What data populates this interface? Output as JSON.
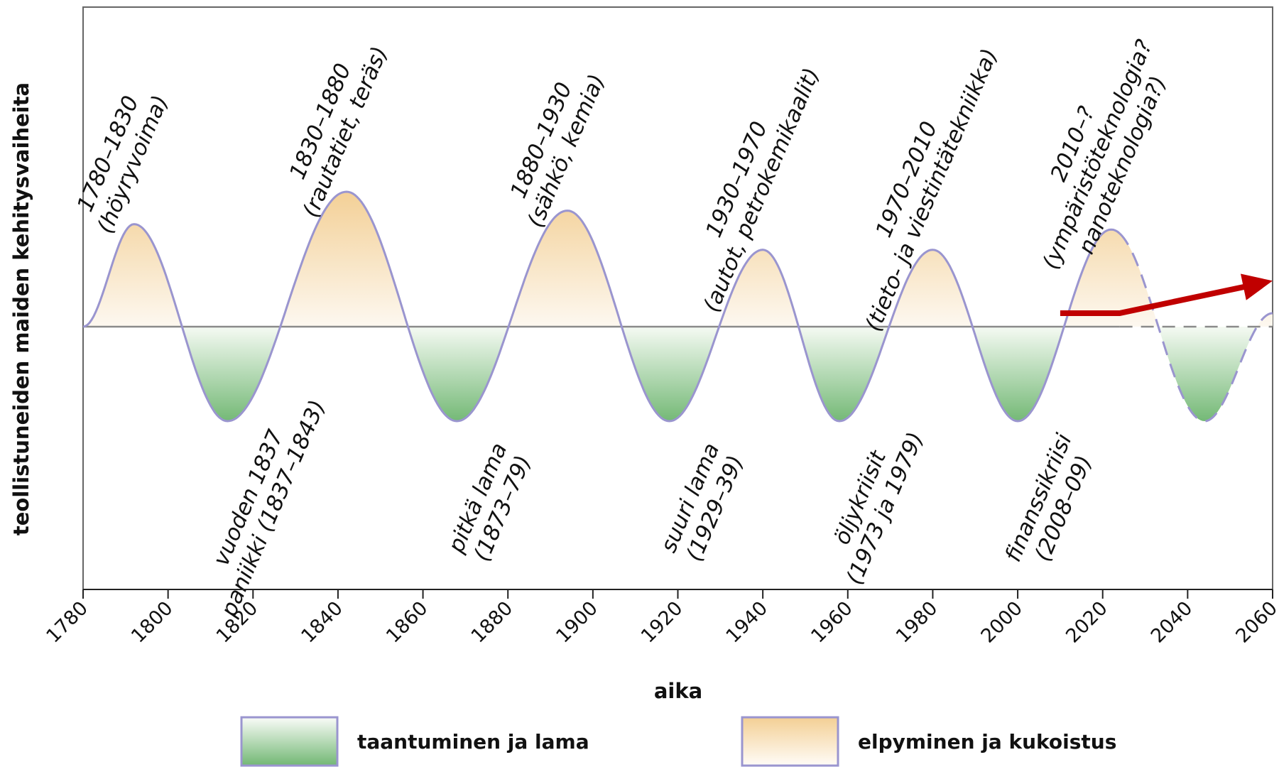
{
  "chart_data": {
    "type": "area",
    "xlabel": "aika",
    "ylabel": "teollistuneiden maiden kehitysvaiheita",
    "xlim": [
      1780,
      2060
    ],
    "xticks": [
      "1780",
      "1800",
      "1820",
      "1840",
      "1860",
      "1880",
      "1900",
      "1920",
      "1940",
      "1960",
      "1980",
      "2000",
      "2020",
      "2040",
      "2060"
    ],
    "grid": false,
    "legend_position": "bottom",
    "legend": [
      {
        "key": "trough",
        "label": "taantuminen ja lama",
        "color": "#7fbf7f"
      },
      {
        "key": "peak",
        "label": "elpyminen ja kukoistus",
        "color": "#f5d7a0"
      }
    ],
    "curve_color": "#9a95cf",
    "baseline_color": "#8a8a8a",
    "arrow_color": "#c00000",
    "extrema": [
      {
        "year": 1780,
        "value": 0
      },
      {
        "year": 1792,
        "value": 0.76
      },
      {
        "year": 1814,
        "value": -0.7
      },
      {
        "year": 1842,
        "value": 1
      },
      {
        "year": 1868,
        "value": -0.7
      },
      {
        "year": 1894,
        "value": 0.86
      },
      {
        "year": 1918,
        "value": -0.7
      },
      {
        "year": 1940,
        "value": 0.57
      },
      {
        "year": 1958,
        "value": -0.7
      },
      {
        "year": 1980,
        "value": 0.57
      },
      {
        "year": 2000,
        "value": -0.7
      },
      {
        "year": 2022,
        "value": 0.72
      },
      {
        "year": 2044,
        "value": -0.7
      },
      {
        "year": 2060,
        "value": 0.1
      }
    ],
    "forecast_from_year": 2024,
    "arrow": {
      "points": [
        [
          2010,
          0.1
        ],
        [
          2024,
          0.1
        ],
        [
          2060,
          0.34
        ]
      ]
    },
    "peak_labels": [
      {
        "year": 1792,
        "lines": [
          "1780–1830",
          "(höyryvoima)"
        ]
      },
      {
        "year": 1842,
        "lines": [
          "1830–1880",
          "(rautatiet, teräs)"
        ]
      },
      {
        "year": 1894,
        "lines": [
          "1880–1930",
          "(sähkö, kemia)"
        ]
      },
      {
        "year": 1940,
        "lines": [
          "1930–1970",
          "(autot, petrokemikaalit)"
        ]
      },
      {
        "year": 1980,
        "lines": [
          "1970–2010",
          "(tieto- ja viestintätekniikka)"
        ]
      },
      {
        "year": 2022,
        "lines": [
          "2010–?",
          "(ympäristöteknologia?",
          "nanoteknologia?)"
        ]
      }
    ],
    "trough_labels": [
      {
        "year": 1814,
        "lines": [
          "vuoden 1837",
          "paniikki (1837–1843)"
        ]
      },
      {
        "year": 1868,
        "lines": [
          "pitkä lama",
          "(1873–79)"
        ]
      },
      {
        "year": 1918,
        "lines": [
          "suuri lama",
          "(1929–39)"
        ]
      },
      {
        "year": 1958,
        "lines": [
          "öljykriisit",
          "(1973 ja 1979)"
        ]
      },
      {
        "year": 2000,
        "lines": [
          "finanssikriisi",
          "(2008–09)"
        ]
      }
    ]
  }
}
